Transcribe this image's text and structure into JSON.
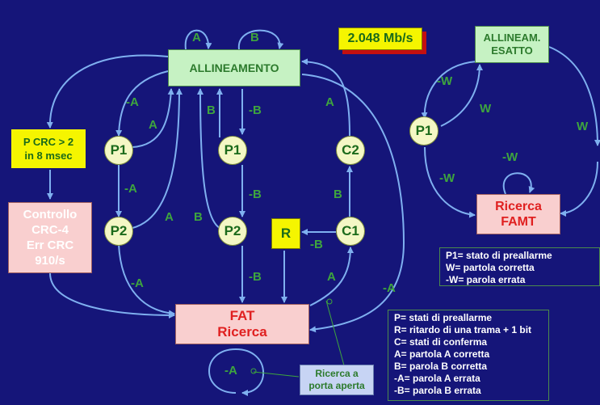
{
  "rate": "2.048 Mb/s",
  "nodes": {
    "allineamento": "ALLINEAMENTO",
    "fat_ricerca": [
      "FAT",
      "Ricerca"
    ],
    "controllo": [
      "Controllo",
      "CRC-4",
      "Err CRC",
      "910/s"
    ],
    "pcrc": [
      "P CRC > 2",
      "in 8 msec"
    ],
    "allineam_esatto": [
      "ALLINEAM.",
      "ESATTO"
    ],
    "ricerca_famt": [
      "Ricerca",
      "FAMT"
    ],
    "ricerca_porta": [
      "Ricerca a",
      "porta aperta"
    ],
    "r": "R",
    "p1_a": "P1",
    "p2_a": "P2",
    "p1_b": "P1",
    "p2_b": "P2",
    "c1": "C1",
    "c2": "C2",
    "p1_right": "P1"
  },
  "edge_labels": {
    "a_top": "A",
    "b_top": "B",
    "neg_a_1": "-A",
    "a_1": "A",
    "b_1": "B",
    "neg_b_1": "-B",
    "a_c2": "A",
    "neg_a_2": "-A",
    "neg_b_2": "-B",
    "b_c2": "B",
    "a_2": "A",
    "b_2": "B",
    "neg_b_r": "-B",
    "neg_a_3": "-A",
    "neg_b_3": "-B",
    "a_c1": "A",
    "neg_a_right": "-A",
    "neg_a_loop": "-A",
    "neg_w_1": "-W",
    "w_1": "W",
    "w_far": "W",
    "neg_w_loop": "-W",
    "neg_w_2": "-W"
  },
  "legend_right": [
    "P1= stato di preallarme",
    "W= partola corretta",
    "-W= parola errata"
  ],
  "legend_bottom": [
    "P= stati di preallarme",
    "R= ritardo di una trama + 1 bit",
    "C= stati di conferma",
    "A= partola A corretta",
    "B= parola B  corretta",
    "-A= parola A errata",
    "-B= parola B  errata"
  ],
  "colors": {
    "background": "#151579",
    "green_box": "#c6f2c3",
    "pink_box": "#f9cfcf",
    "node_circle": "#f4f7c5",
    "yellow": "#f5f500",
    "arrow": "#7fb0f0",
    "label_green": "#3ea53e",
    "red_text": "#e02020"
  }
}
